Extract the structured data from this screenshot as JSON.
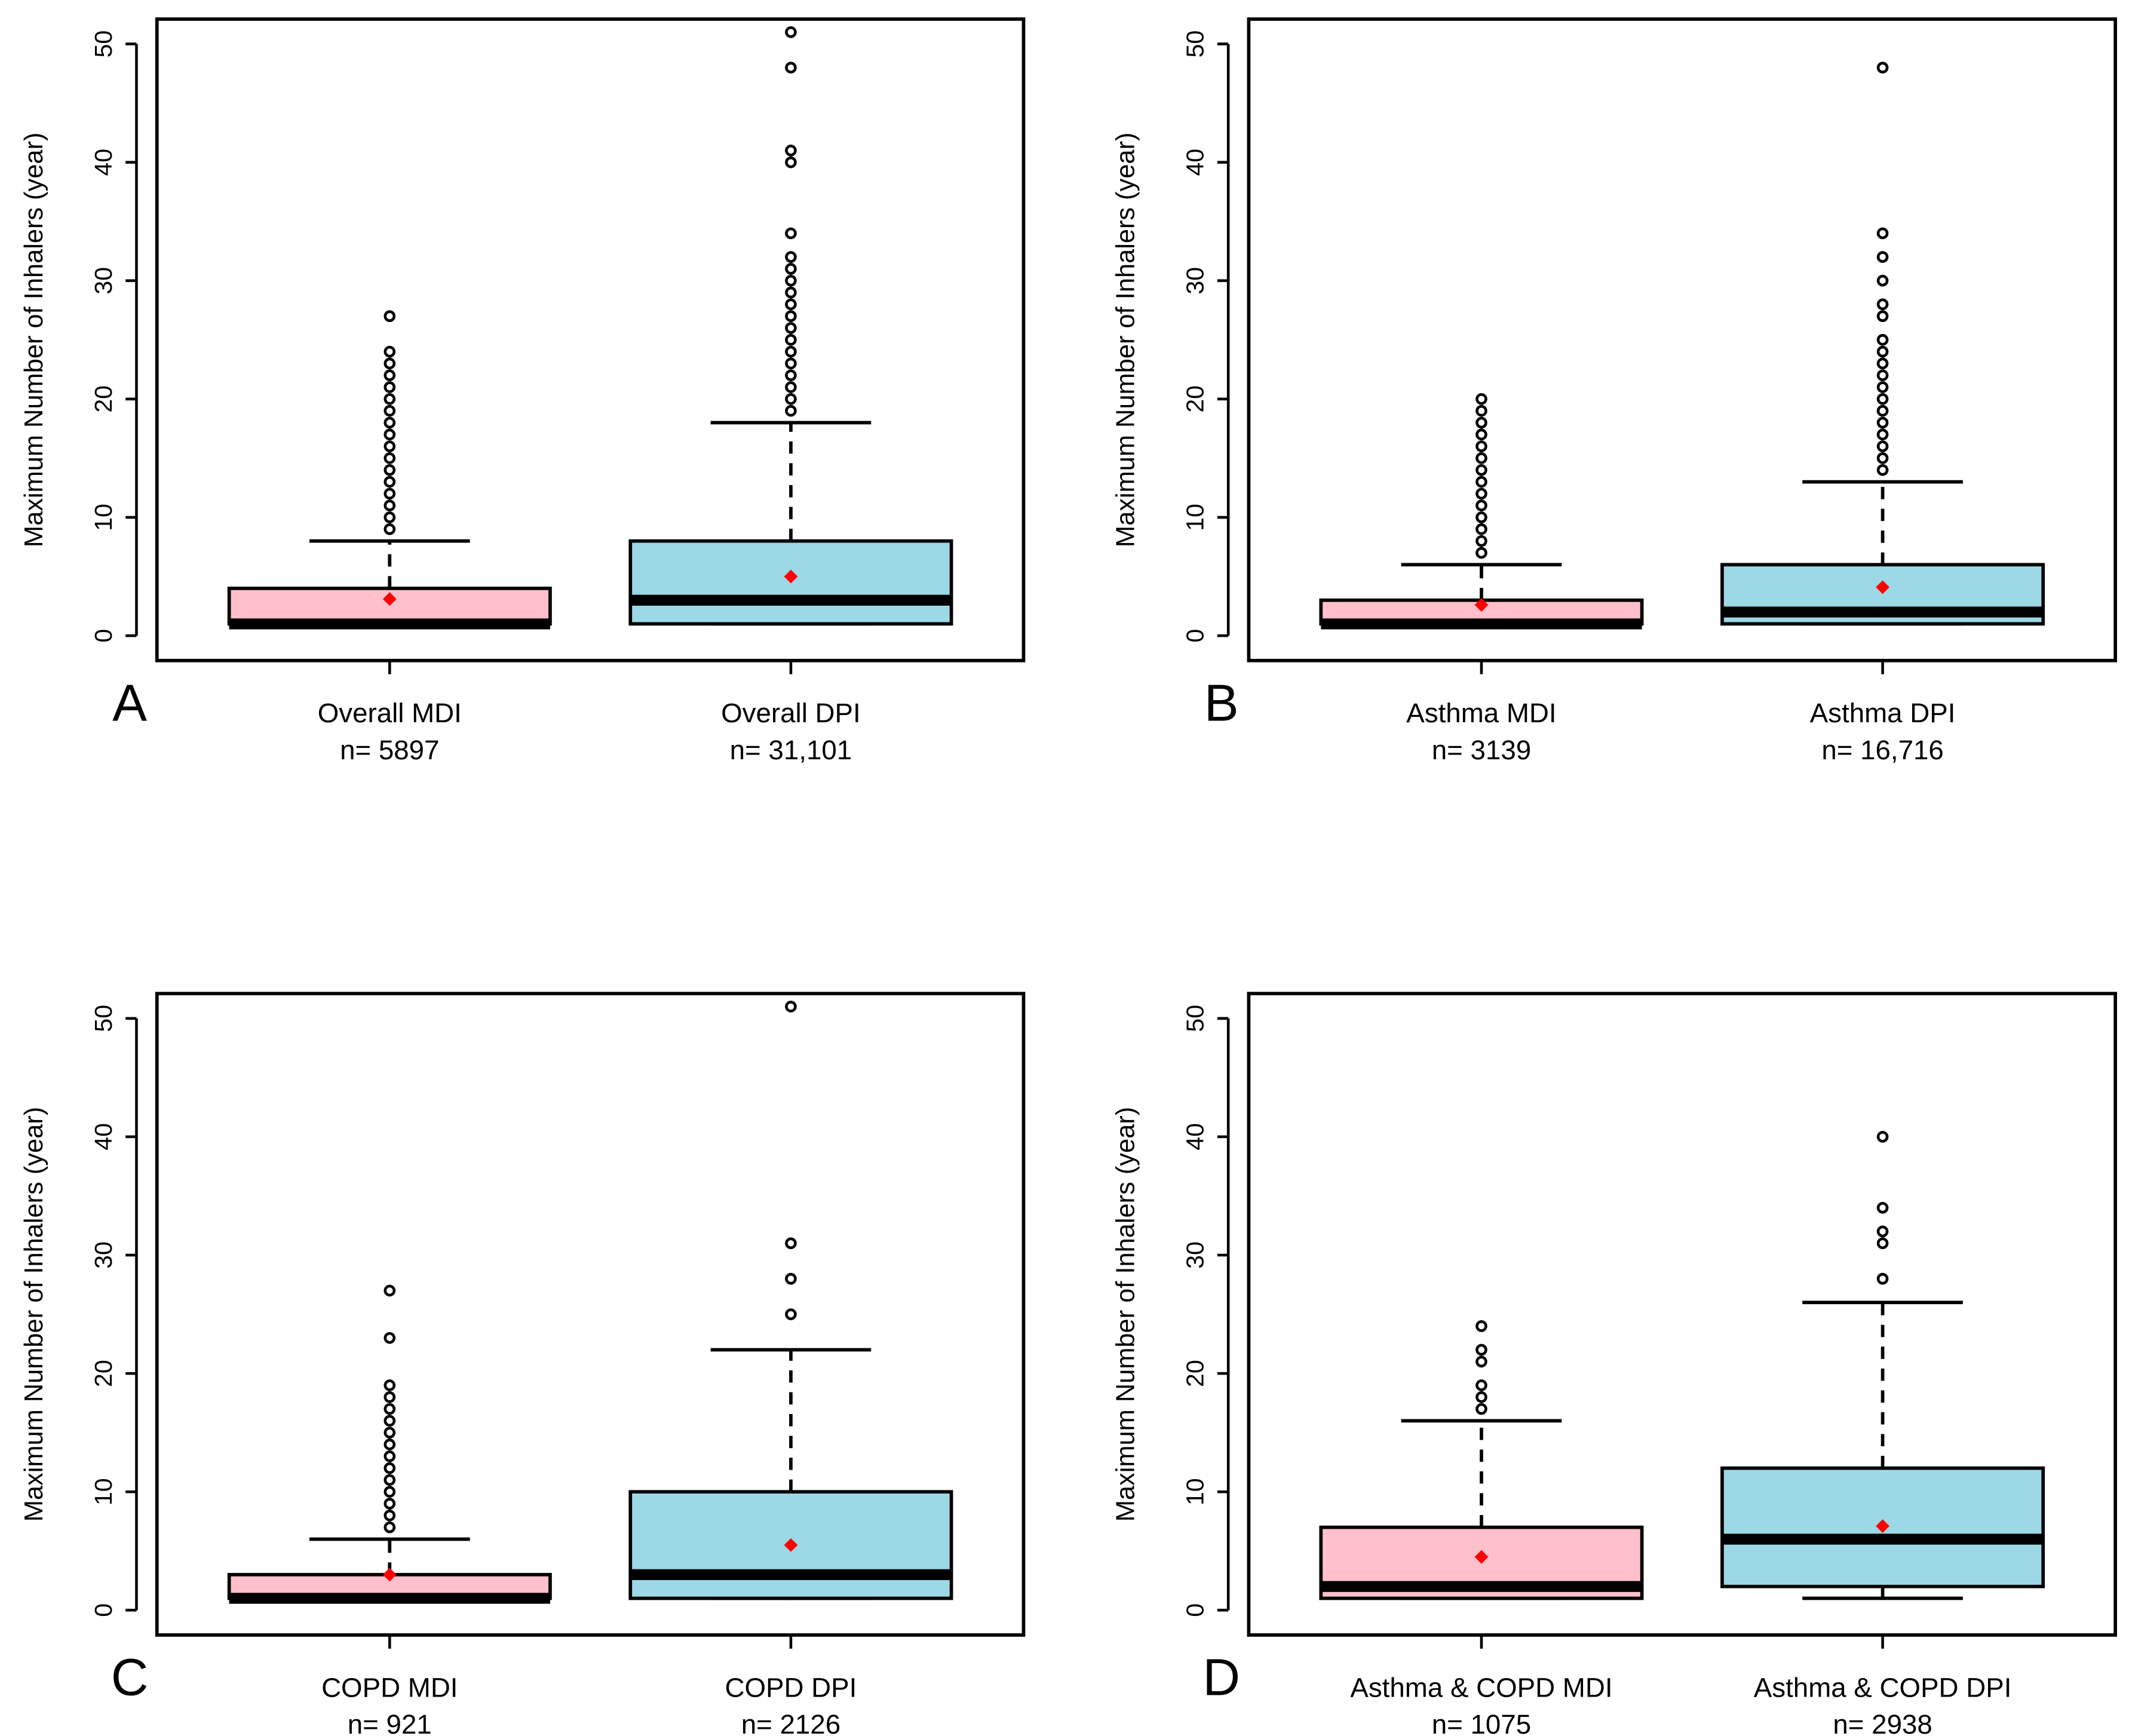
{
  "chart_data": [
    {
      "type": "box",
      "panel_label": "A",
      "y_label": "Maximum Number of Inhalers (year)",
      "categories": [
        "Overall MDI",
        "Overall DPI"
      ],
      "n_labels": [
        "n= 5897",
        "n= 31,101"
      ],
      "ylim": [
        -2.1,
        52.1
      ],
      "yticks": [
        0,
        10,
        20,
        30,
        40,
        50
      ],
      "series": [
        {
          "color": "#ffc0cb",
          "whisker_low": 1,
          "q1": 1,
          "median": 1,
          "q3": 4,
          "whisker_high": 8,
          "mean": 3.1,
          "outliers": [
            9,
            10,
            11,
            12,
            13,
            14,
            15,
            16,
            17,
            18,
            19,
            20,
            21,
            22,
            23,
            24,
            27
          ]
        },
        {
          "color": "#9dd8e6",
          "whisker_low": 1,
          "q1": 1,
          "median": 3,
          "q3": 8,
          "whisker_high": 18,
          "mean": 5,
          "outliers": [
            19,
            20,
            21,
            22,
            23,
            24,
            25,
            26,
            27,
            28,
            29,
            30,
            31,
            32,
            34,
            40,
            41,
            48,
            51
          ]
        }
      ]
    },
    {
      "type": "box",
      "panel_label": "B",
      "y_label": "Maximum Number of Inhalers (year)",
      "categories": [
        "Asthma MDI",
        "Asthma DPI"
      ],
      "n_labels": [
        "n= 3139",
        "n= 16,716"
      ],
      "ylim": [
        -2.1,
        52.1
      ],
      "yticks": [
        0,
        10,
        20,
        30,
        40,
        50
      ],
      "series": [
        {
          "color": "#ffc0cb",
          "whisker_low": 1,
          "q1": 1,
          "median": 1,
          "q3": 3,
          "whisker_high": 6,
          "mean": 2.6,
          "outliers": [
            7,
            8,
            9,
            10,
            11,
            12,
            13,
            14,
            15,
            16,
            17,
            18,
            19,
            20
          ]
        },
        {
          "color": "#9dd8e6",
          "whisker_low": 1,
          "q1": 1,
          "median": 2,
          "q3": 6,
          "whisker_high": 13,
          "mean": 4.1,
          "outliers": [
            14,
            15,
            16,
            17,
            18,
            19,
            20,
            21,
            22,
            23,
            24,
            25,
            27,
            28,
            30,
            32,
            34,
            48
          ]
        }
      ]
    },
    {
      "type": "box",
      "panel_label": "C",
      "y_label": "Maximum Number of Inhalers (year)",
      "categories": [
        "COPD MDI",
        "COPD DPI"
      ],
      "n_labels": [
        "n= 921",
        "n= 2126"
      ],
      "ylim": [
        -2.1,
        52.1
      ],
      "yticks": [
        0,
        10,
        20,
        30,
        40,
        50
      ],
      "series": [
        {
          "color": "#ffc0cb",
          "whisker_low": 1,
          "q1": 1,
          "median": 1,
          "q3": 3,
          "whisker_high": 6,
          "mean": 3,
          "outliers": [
            7,
            8,
            9,
            10,
            11,
            12,
            13,
            14,
            15,
            16,
            17,
            18,
            19,
            23,
            27
          ]
        },
        {
          "color": "#9dd8e6",
          "whisker_low": 1,
          "q1": 1,
          "median": 3,
          "q3": 10,
          "whisker_high": 22,
          "mean": 5.5,
          "outliers": [
            25,
            28,
            31,
            51
          ]
        }
      ]
    },
    {
      "type": "box",
      "panel_label": "D",
      "y_label": "Maximum Number of Inhalers (year)",
      "categories": [
        "Asthma & COPD MDI",
        "Asthma & COPD DPI"
      ],
      "n_labels": [
        "n= 1075",
        "n= 2938"
      ],
      "ylim": [
        -2.1,
        52.1
      ],
      "yticks": [
        0,
        10,
        20,
        30,
        40,
        50
      ],
      "series": [
        {
          "color": "#ffc0cb",
          "whisker_low": 1,
          "q1": 1,
          "median": 2,
          "q3": 7,
          "whisker_high": 16,
          "mean": 4.5,
          "outliers": [
            17,
            18,
            19,
            21,
            22,
            24
          ]
        },
        {
          "color": "#9dd8e6",
          "whisker_low": 1,
          "q1": 2,
          "median": 6,
          "q3": 12,
          "whisker_high": 26,
          "mean": 7.1,
          "outliers": [
            28,
            31,
            32,
            34,
            40
          ]
        }
      ]
    }
  ]
}
